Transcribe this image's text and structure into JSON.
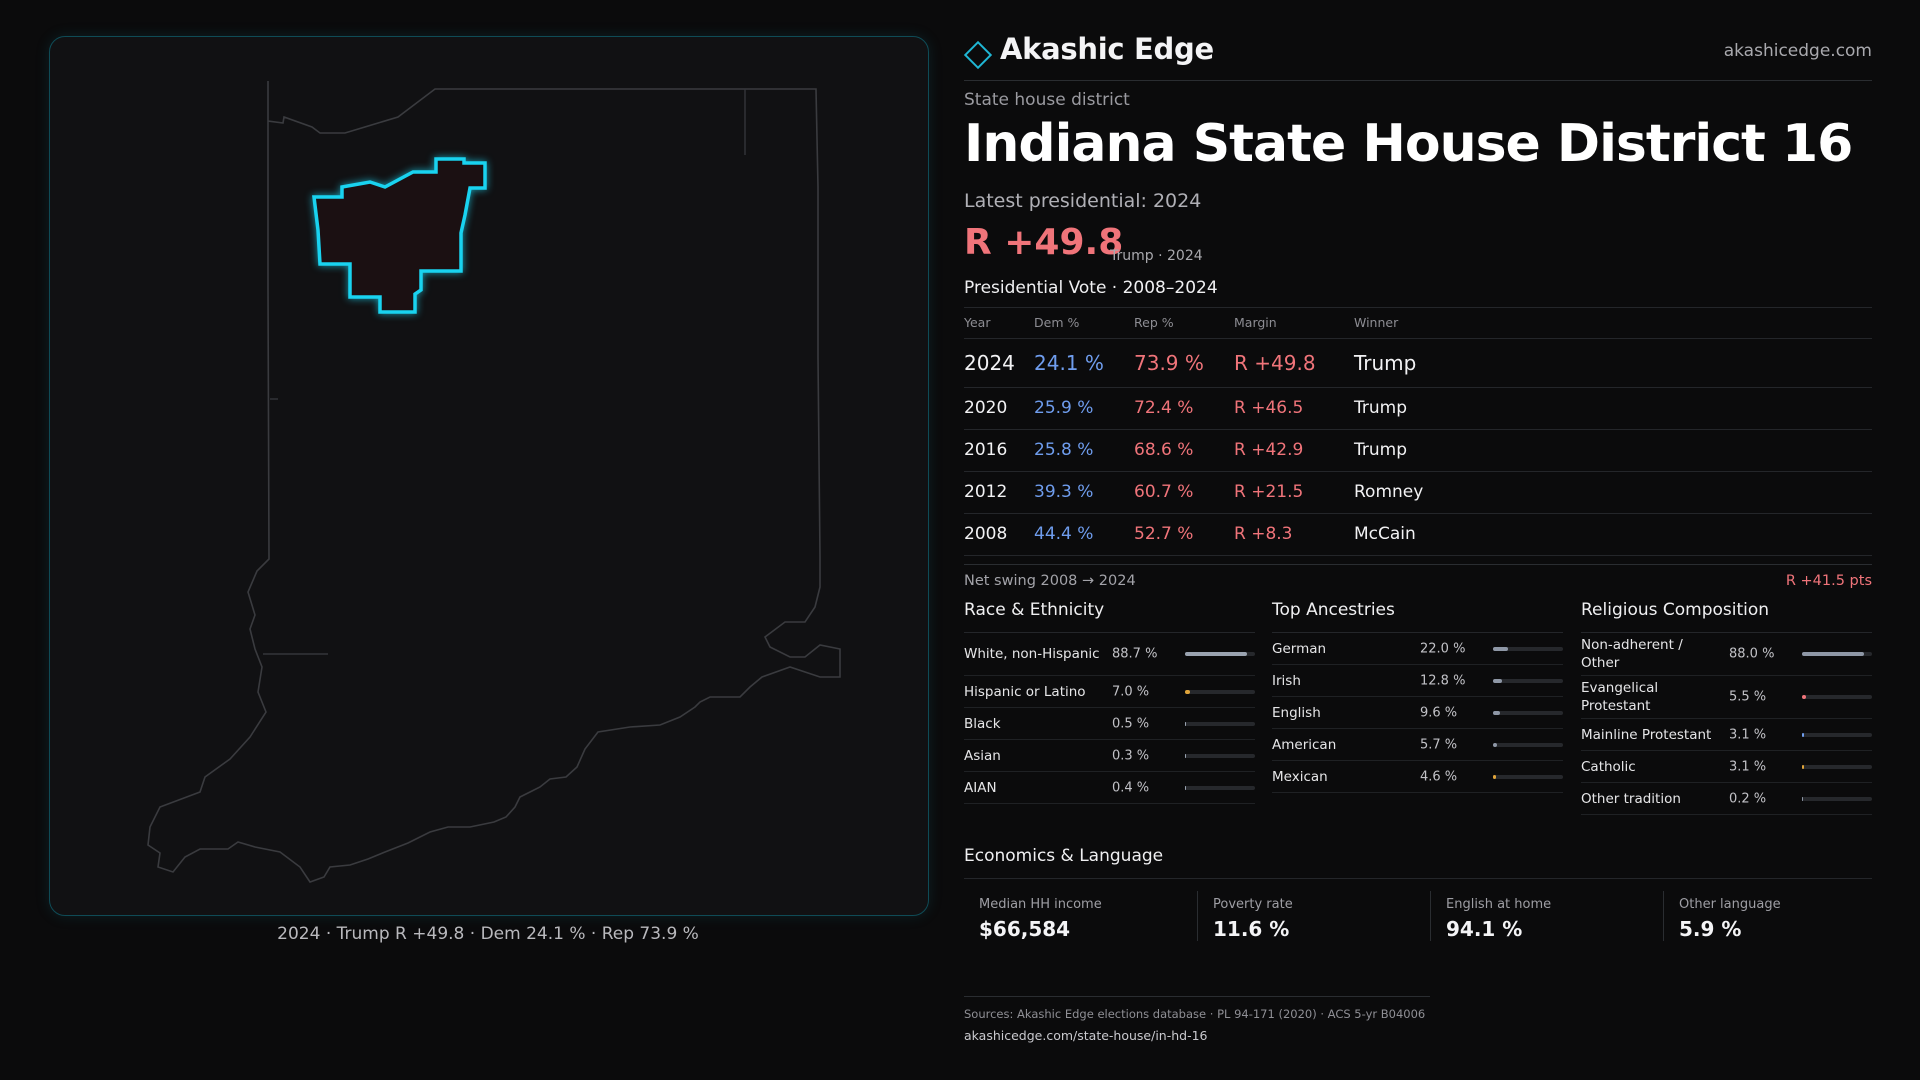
{
  "map": {
    "caption": "2024 · Trump R +49.8 · Dem 24.1 % · Rep 73.9 %"
  },
  "brand": {
    "name": "Akashic Edge",
    "url": "akashicedge.com",
    "logo_icon": "diamond-outline-icon",
    "accent_color": "#1fb6d4"
  },
  "header": {
    "kicker": "State house district",
    "title": "Indiana State House District 16",
    "latest": "Latest presidential: 2024",
    "margin": "R +49.8",
    "margin_sub": "Trump · 2024"
  },
  "colors": {
    "dem": "#6f9dee",
    "rep": "#f0747a",
    "district_outline": "#19d3f0"
  },
  "presidential": {
    "heading": "Presidential Vote · 2008–2024",
    "columns": [
      "Year",
      "Dem %",
      "Rep %",
      "Margin",
      "Winner"
    ],
    "rows": [
      {
        "year": "2024",
        "dem": "24.1 %",
        "rep": "73.9 %",
        "margin": "R +49.8",
        "winner": "Trump"
      },
      {
        "year": "2020",
        "dem": "25.9 %",
        "rep": "72.4 %",
        "margin": "R +46.5",
        "winner": "Trump"
      },
      {
        "year": "2016",
        "dem": "25.8 %",
        "rep": "68.6 %",
        "margin": "R +42.9",
        "winner": "Trump"
      },
      {
        "year": "2012",
        "dem": "39.3 %",
        "rep": "60.7 %",
        "margin": "R +21.5",
        "winner": "Romney"
      },
      {
        "year": "2008",
        "dem": "44.4 %",
        "rep": "52.7 %",
        "margin": "R +8.3",
        "winner": "McCain"
      }
    ],
    "swing_label": "Net swing 2008 → 2024",
    "swing_value": "R +41.5 pts"
  },
  "race": {
    "title": "Race & Ethnicity",
    "rows": [
      {
        "label": "White, non-Hispanic",
        "value": "88.7 %",
        "share": 0.887,
        "color": "#9aa3b0"
      },
      {
        "label": "Hispanic or Latino",
        "value": "7.0 %",
        "share": 0.07,
        "color": "#e0a43a"
      },
      {
        "label": "Black",
        "value": "0.5 %",
        "share": 0.005,
        "color": "#9aa3b0"
      },
      {
        "label": "Asian",
        "value": "0.3 %",
        "share": 0.003,
        "color": "#9aa3b0"
      },
      {
        "label": "AIAN",
        "value": "0.4 %",
        "share": 0.004,
        "color": "#9aa3b0"
      }
    ]
  },
  "ancestry": {
    "title": "Top Ancestries",
    "rows": [
      {
        "label": "German",
        "value": "22.0 %",
        "share": 0.22,
        "color": "#8e97a6"
      },
      {
        "label": "Irish",
        "value": "12.8 %",
        "share": 0.128,
        "color": "#8e97a6"
      },
      {
        "label": "English",
        "value": "9.6 %",
        "share": 0.096,
        "color": "#8e97a6"
      },
      {
        "label": "American",
        "value": "5.7 %",
        "share": 0.057,
        "color": "#8e97a6"
      },
      {
        "label": "Mexican",
        "value": "4.6 %",
        "share": 0.046,
        "color": "#e0a43a"
      }
    ]
  },
  "religion": {
    "title": "Religious Composition",
    "rows": [
      {
        "label": "Non-adherent / Other",
        "value": "88.0 %",
        "share": 0.88,
        "color": "#8e97a6"
      },
      {
        "label": "Evangelical Protestant",
        "value": "5.5 %",
        "share": 0.055,
        "color": "#f0747a"
      },
      {
        "label": "Mainline Protestant",
        "value": "3.1 %",
        "share": 0.031,
        "color": "#6f9dee"
      },
      {
        "label": "Catholic",
        "value": "3.1 %",
        "share": 0.031,
        "color": "#e0a43a"
      },
      {
        "label": "Other tradition",
        "value": "0.2 %",
        "share": 0.002,
        "color": "#8e97a6"
      }
    ]
  },
  "economics": {
    "title": "Economics & Language",
    "cells": [
      {
        "label": "Median HH income",
        "value": "$66,584"
      },
      {
        "label": "Poverty rate",
        "value": "11.6 %"
      },
      {
        "label": "English at home",
        "value": "94.1 %"
      },
      {
        "label": "Other language",
        "value": "5.9 %"
      }
    ]
  },
  "sources": {
    "line": "Sources: Akashic Edge elections database · PL 94-171 (2020) · ACS 5-yr B04006",
    "url": "akashicedge.com/state-house/in-hd-16"
  }
}
